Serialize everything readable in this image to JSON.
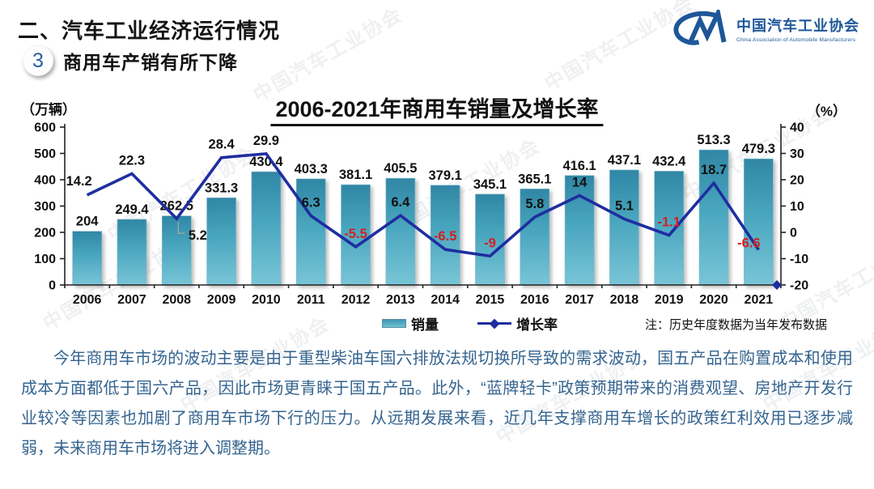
{
  "header": {
    "section_title": "二、汽车工业经济运行情况",
    "badge_number": "3",
    "subtitle": "商用车产销有所下降",
    "logo": {
      "mark": "CM-monogram",
      "name_cn": "中国汽车工业协会",
      "name_en": "China Association of Automobile Manufacturers"
    }
  },
  "chart": {
    "title": "2006-2021年商用车销量及增长率",
    "left_axis_unit": "（万辆）",
    "right_axis_unit": "（%）",
    "note": "注：历史年度数据为当年发布数据",
    "legend": {
      "bars": "销量",
      "line": "增长率"
    }
  },
  "chart_data": {
    "type": "bar+line",
    "title": "2006-2021年商用车销量及增长率",
    "categories": [
      "2006",
      "2007",
      "2008",
      "2009",
      "2010",
      "2011",
      "2012",
      "2013",
      "2014",
      "2015",
      "2016",
      "2017",
      "2018",
      "2019",
      "2020",
      "2021"
    ],
    "series": [
      {
        "name": "销量",
        "type": "bar",
        "axis": "left",
        "unit": "万辆",
        "values": [
          204,
          249.4,
          262.5,
          331.3,
          430.4,
          403.3,
          381.1,
          405.5,
          379.1,
          345.1,
          365.1,
          416.1,
          437.1,
          432.4,
          513.3,
          479.3
        ]
      },
      {
        "name": "增长率",
        "type": "line",
        "axis": "right",
        "unit": "%",
        "values": [
          14.2,
          22.3,
          5.2,
          28.4,
          29.9,
          6.3,
          -5.5,
          6.4,
          -6.5,
          -9,
          5.8,
          14,
          5.1,
          -1.1,
          18.7,
          -6.6
        ]
      }
    ],
    "left_axis": {
      "min": 0,
      "max": 600,
      "step": 100,
      "ticks": [
        "600",
        "500",
        "400",
        "300",
        "200",
        "100",
        "0"
      ]
    },
    "right_axis": {
      "min": -20,
      "max": 40,
      "step": 10,
      "ticks": [
        "40",
        "30",
        "20",
        "10",
        "0",
        "-10",
        "-20"
      ]
    },
    "grid": false,
    "legend_position": "bottom",
    "end_marker": {
      "category": "2021",
      "value": -20
    },
    "growth_label_offsets": [
      [
        -10,
        -12
      ],
      null,
      [
        26,
        26
      ],
      null,
      null,
      null,
      null,
      null,
      null,
      null,
      null,
      null,
      null,
      null,
      null,
      [
        -12,
        -3
      ]
    ],
    "colors": {
      "bar_top": "#2f87a5",
      "bar_mid": "#4aa6bf",
      "bar_bottom": "#79c5d7",
      "line": "#1e2ea0",
      "negative_label": "#d22020",
      "text": "#111111",
      "axis": "#222222",
      "paragraph": "#35648f",
      "brand_blue": "#1e5799"
    }
  },
  "paragraph": "今年商用车市场的波动主要是由于重型柴油车国六排放法规切换所导致的需求波动，国五产品在购置成本和使用成本方面都低于国六产品，因此市场更青睐于国五产品。此外，“蓝牌轻卡”政策预期带来的消费观望、房地产开发行业较冷等因素也加剧了商用车市场下行的压力。从远期发展来看，近几年支撑商用车增长的政策红利效用已逐步减弱，未来商用车市场将进入调整期。",
  "watermark": {
    "text": "中国汽车工业协会"
  }
}
